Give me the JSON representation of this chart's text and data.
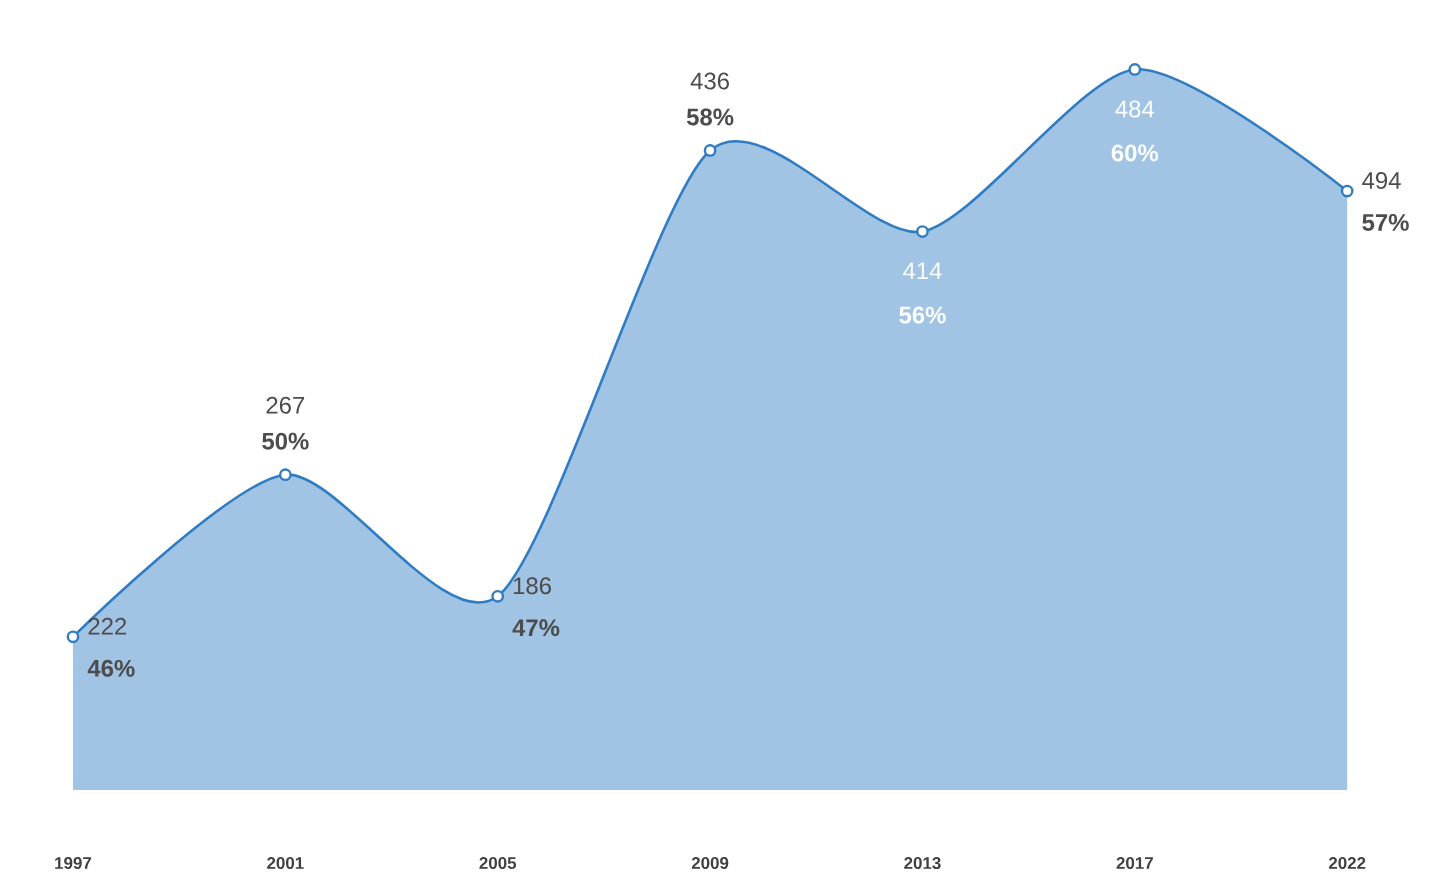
{
  "chart_data": {
    "type": "area",
    "categories": [
      "1997",
      "2001",
      "2005",
      "2009",
      "2013",
      "2017",
      "2022"
    ],
    "values": [
      46,
      50,
      47,
      58,
      56,
      60,
      57
    ],
    "value_labels": [
      "46%",
      "50%",
      "47%",
      "58%",
      "56%",
      "60%",
      "57%"
    ],
    "annotations": [
      {
        "text": "222",
        "x": "1997",
        "y": 46
      },
      {
        "text": "267",
        "x": "2001",
        "y": 50
      },
      {
        "text": "186",
        "x": "2005",
        "y": 47
      },
      {
        "text": "436",
        "x": "2009",
        "y": 58
      },
      {
        "text": "414",
        "x": "2013",
        "y": 56
      },
      {
        "text": "484",
        "x": "2017",
        "y": 60
      },
      {
        "text": "494",
        "x": "2022",
        "y": 57
      }
    ],
    "color": "#2f7cc3",
    "tick_labels": "x",
    "marker": "circle",
    "grid": false
  }
}
